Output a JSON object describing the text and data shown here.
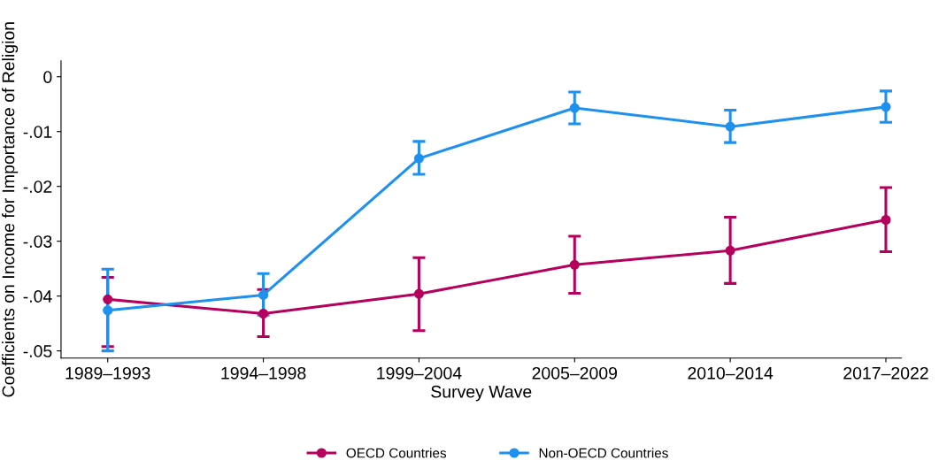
{
  "chart_data": {
    "type": "line",
    "xlabel": "Survey Wave",
    "ylabel": "Coefficients on Income for Importance of Religion",
    "categories": [
      "1989–1993",
      "1994–1998",
      "1999–2004",
      "2005–2009",
      "2010–2014",
      "2017–2022"
    ],
    "series": [
      {
        "name": "OECD Countries",
        "color": "#b5005d",
        "values": [
          -0.0406,
          -0.0432,
          -0.0396,
          -0.0343,
          -0.0317,
          -0.0261
        ],
        "errors": [
          [
            -0.0492,
            -0.0366
          ],
          [
            -0.0474,
            -0.0388
          ],
          [
            -0.0463,
            -0.033
          ],
          [
            -0.0395,
            -0.0291
          ],
          [
            -0.0377,
            -0.0256
          ],
          [
            -0.0319,
            -0.0202
          ]
        ]
      },
      {
        "name": "Non-OECD Countries",
        "color": "#1e90f0",
        "values": [
          -0.0426,
          -0.0398,
          -0.0149,
          -0.0057,
          -0.0091,
          -0.0055
        ],
        "errors": [
          [
            -0.05,
            -0.0351
          ],
          [
            -0.0435,
            -0.0359
          ],
          [
            -0.0178,
            -0.0118
          ],
          [
            -0.0086,
            -0.0028
          ],
          [
            -0.012,
            -0.0061
          ],
          [
            -0.0083,
            -0.0026
          ]
        ]
      }
    ],
    "ylim": [
      -0.0513,
      0.0029
    ],
    "yticks": [
      {
        "value": -0.05,
        "label": "-.05"
      },
      {
        "value": -0.04,
        "label": "-.04"
      },
      {
        "value": -0.03,
        "label": "-.03"
      },
      {
        "value": -0.02,
        "label": "-.02"
      },
      {
        "value": -0.01,
        "label": "-.01"
      },
      0
    ],
    "marker": "circle",
    "line_style": "solid",
    "grid": false,
    "legend": "bottom"
  }
}
